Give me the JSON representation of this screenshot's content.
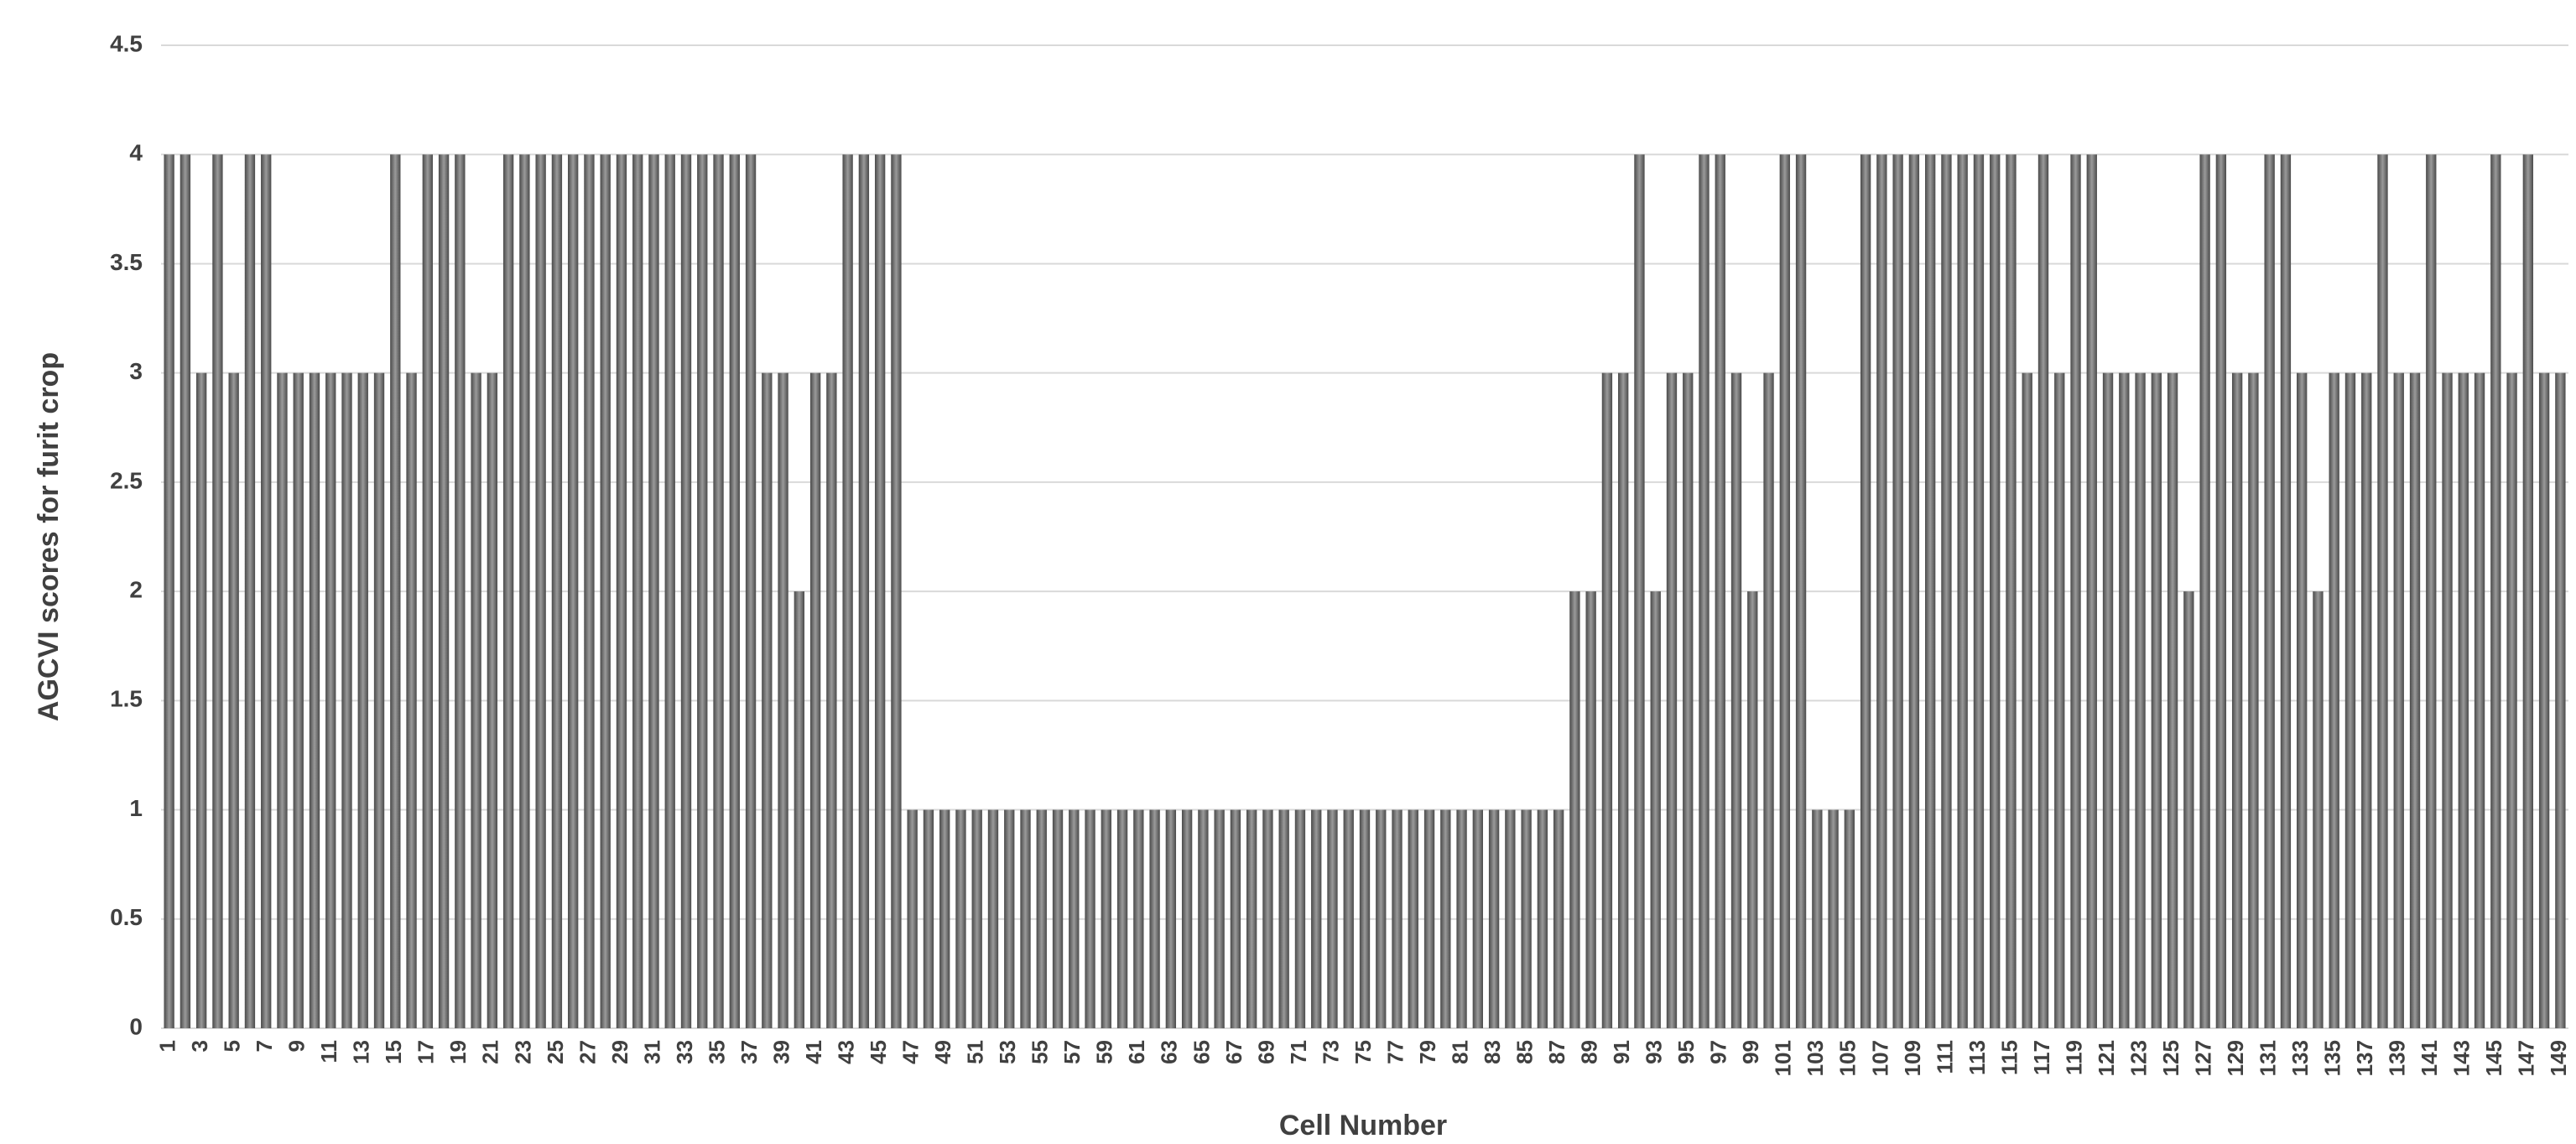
{
  "chart_data": {
    "type": "bar",
    "y_label": "AGCVI  scores for furit crop",
    "x_label": "Cell Number",
    "categories": [
      "1",
      null,
      "3",
      null,
      "5",
      null,
      "7",
      null,
      "9",
      null,
      "11",
      null,
      "13",
      null,
      "15",
      null,
      "17",
      null,
      "19",
      null,
      "21",
      null,
      "23",
      null,
      "25",
      null,
      "27",
      null,
      "29",
      null,
      "31",
      null,
      "33",
      null,
      "35",
      null,
      "37",
      null,
      "39",
      null,
      "41",
      null,
      "43",
      null,
      "45",
      null,
      "47",
      null,
      "49",
      null,
      "51",
      null,
      "53",
      null,
      "55",
      null,
      "57",
      null,
      "59",
      null,
      "61",
      null,
      "63",
      null,
      "65",
      null,
      "67",
      null,
      "69",
      null,
      "71",
      null,
      "73",
      null,
      "75",
      null,
      "77",
      null,
      "79",
      null,
      "81",
      null,
      "83",
      null,
      "85",
      null,
      "87",
      null,
      "89",
      null,
      "91",
      null,
      "93",
      null,
      "95",
      null,
      "97",
      null,
      "99",
      null,
      "101",
      null,
      "103",
      null,
      "105",
      null,
      "107",
      null,
      "109",
      null,
      "111",
      null,
      "113",
      null,
      "115",
      null,
      "117",
      null,
      "119",
      null,
      "121",
      null,
      "123",
      null,
      "125",
      null,
      "127",
      null,
      "129",
      null,
      "131",
      null,
      "133",
      null,
      "135",
      null,
      "137",
      null,
      "139",
      null,
      "141",
      null,
      "143",
      null,
      "145",
      null,
      "147",
      null,
      "149"
    ],
    "values": [
      4,
      4,
      3,
      4,
      3,
      4,
      4,
      3,
      3,
      3,
      3,
      3,
      3,
      3,
      4,
      3,
      4,
      4,
      4,
      3,
      3,
      4,
      4,
      4,
      4,
      4,
      4,
      4,
      4,
      4,
      4,
      4,
      4,
      4,
      4,
      4,
      4,
      3,
      3,
      2,
      3,
      3,
      4,
      4,
      4,
      4,
      1,
      1,
      1,
      1,
      1,
      1,
      1,
      1,
      1,
      1,
      1,
      1,
      1,
      1,
      1,
      1,
      1,
      1,
      1,
      1,
      1,
      1,
      1,
      1,
      1,
      1,
      1,
      1,
      1,
      1,
      1,
      1,
      1,
      1,
      1,
      1,
      1,
      1,
      1,
      1,
      1,
      2,
      2,
      3,
      3,
      4,
      2,
      3,
      3,
      4,
      4,
      3,
      2,
      3,
      4,
      4,
      1,
      1,
      1,
      4,
      4,
      4,
      4,
      4,
      4,
      4,
      4,
      4,
      4,
      3,
      4,
      3,
      4,
      4,
      3,
      3,
      3,
      3,
      3,
      2,
      4,
      4,
      3,
      3,
      4,
      4,
      3,
      2,
      3,
      3,
      3,
      4,
      3,
      3,
      4,
      3,
      3,
      3,
      4,
      3,
      4,
      3,
      3
    ],
    "color": "#6a6a6a",
    "ylim": [
      0,
      4.5
    ],
    "yticks": [
      0,
      0.5,
      1,
      1.5,
      2,
      2.5,
      3,
      3.5,
      4,
      4.5
    ],
    "grid": true
  }
}
